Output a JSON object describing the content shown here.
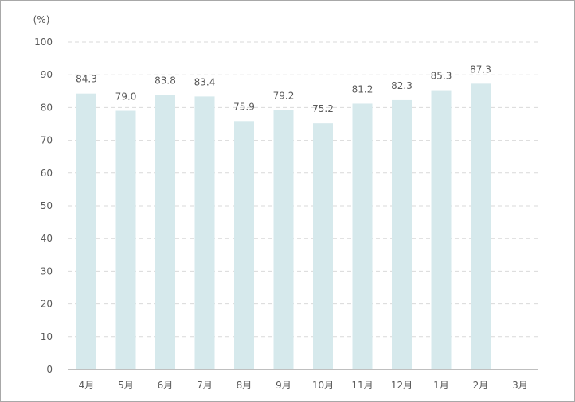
{
  "chart_data": {
    "type": "bar",
    "unit_label": "(%)",
    "categories": [
      "4月",
      "5月",
      "6月",
      "7月",
      "8月",
      "9月",
      "10月",
      "11月",
      "12月",
      "1月",
      "2月",
      "3月"
    ],
    "values": [
      84.3,
      79.0,
      83.8,
      83.4,
      75.9,
      79.2,
      75.2,
      81.2,
      82.3,
      85.3,
      87.3,
      null
    ],
    "value_labels": [
      "84.3",
      "79.0",
      "83.8",
      "83.4",
      "75.9",
      "79.2",
      "75.2",
      "81.2",
      "82.3",
      "85.3",
      "87.3",
      ""
    ],
    "ylim": [
      0,
      100
    ],
    "yticks": [
      0,
      10,
      20,
      30,
      40,
      50,
      60,
      70,
      80,
      90,
      100
    ],
    "grid": true,
    "bar_color": "#d6e9ec",
    "grid_color": "#d9d9d9",
    "axis_color": "#bfbfbf",
    "text_color": "#595959"
  }
}
